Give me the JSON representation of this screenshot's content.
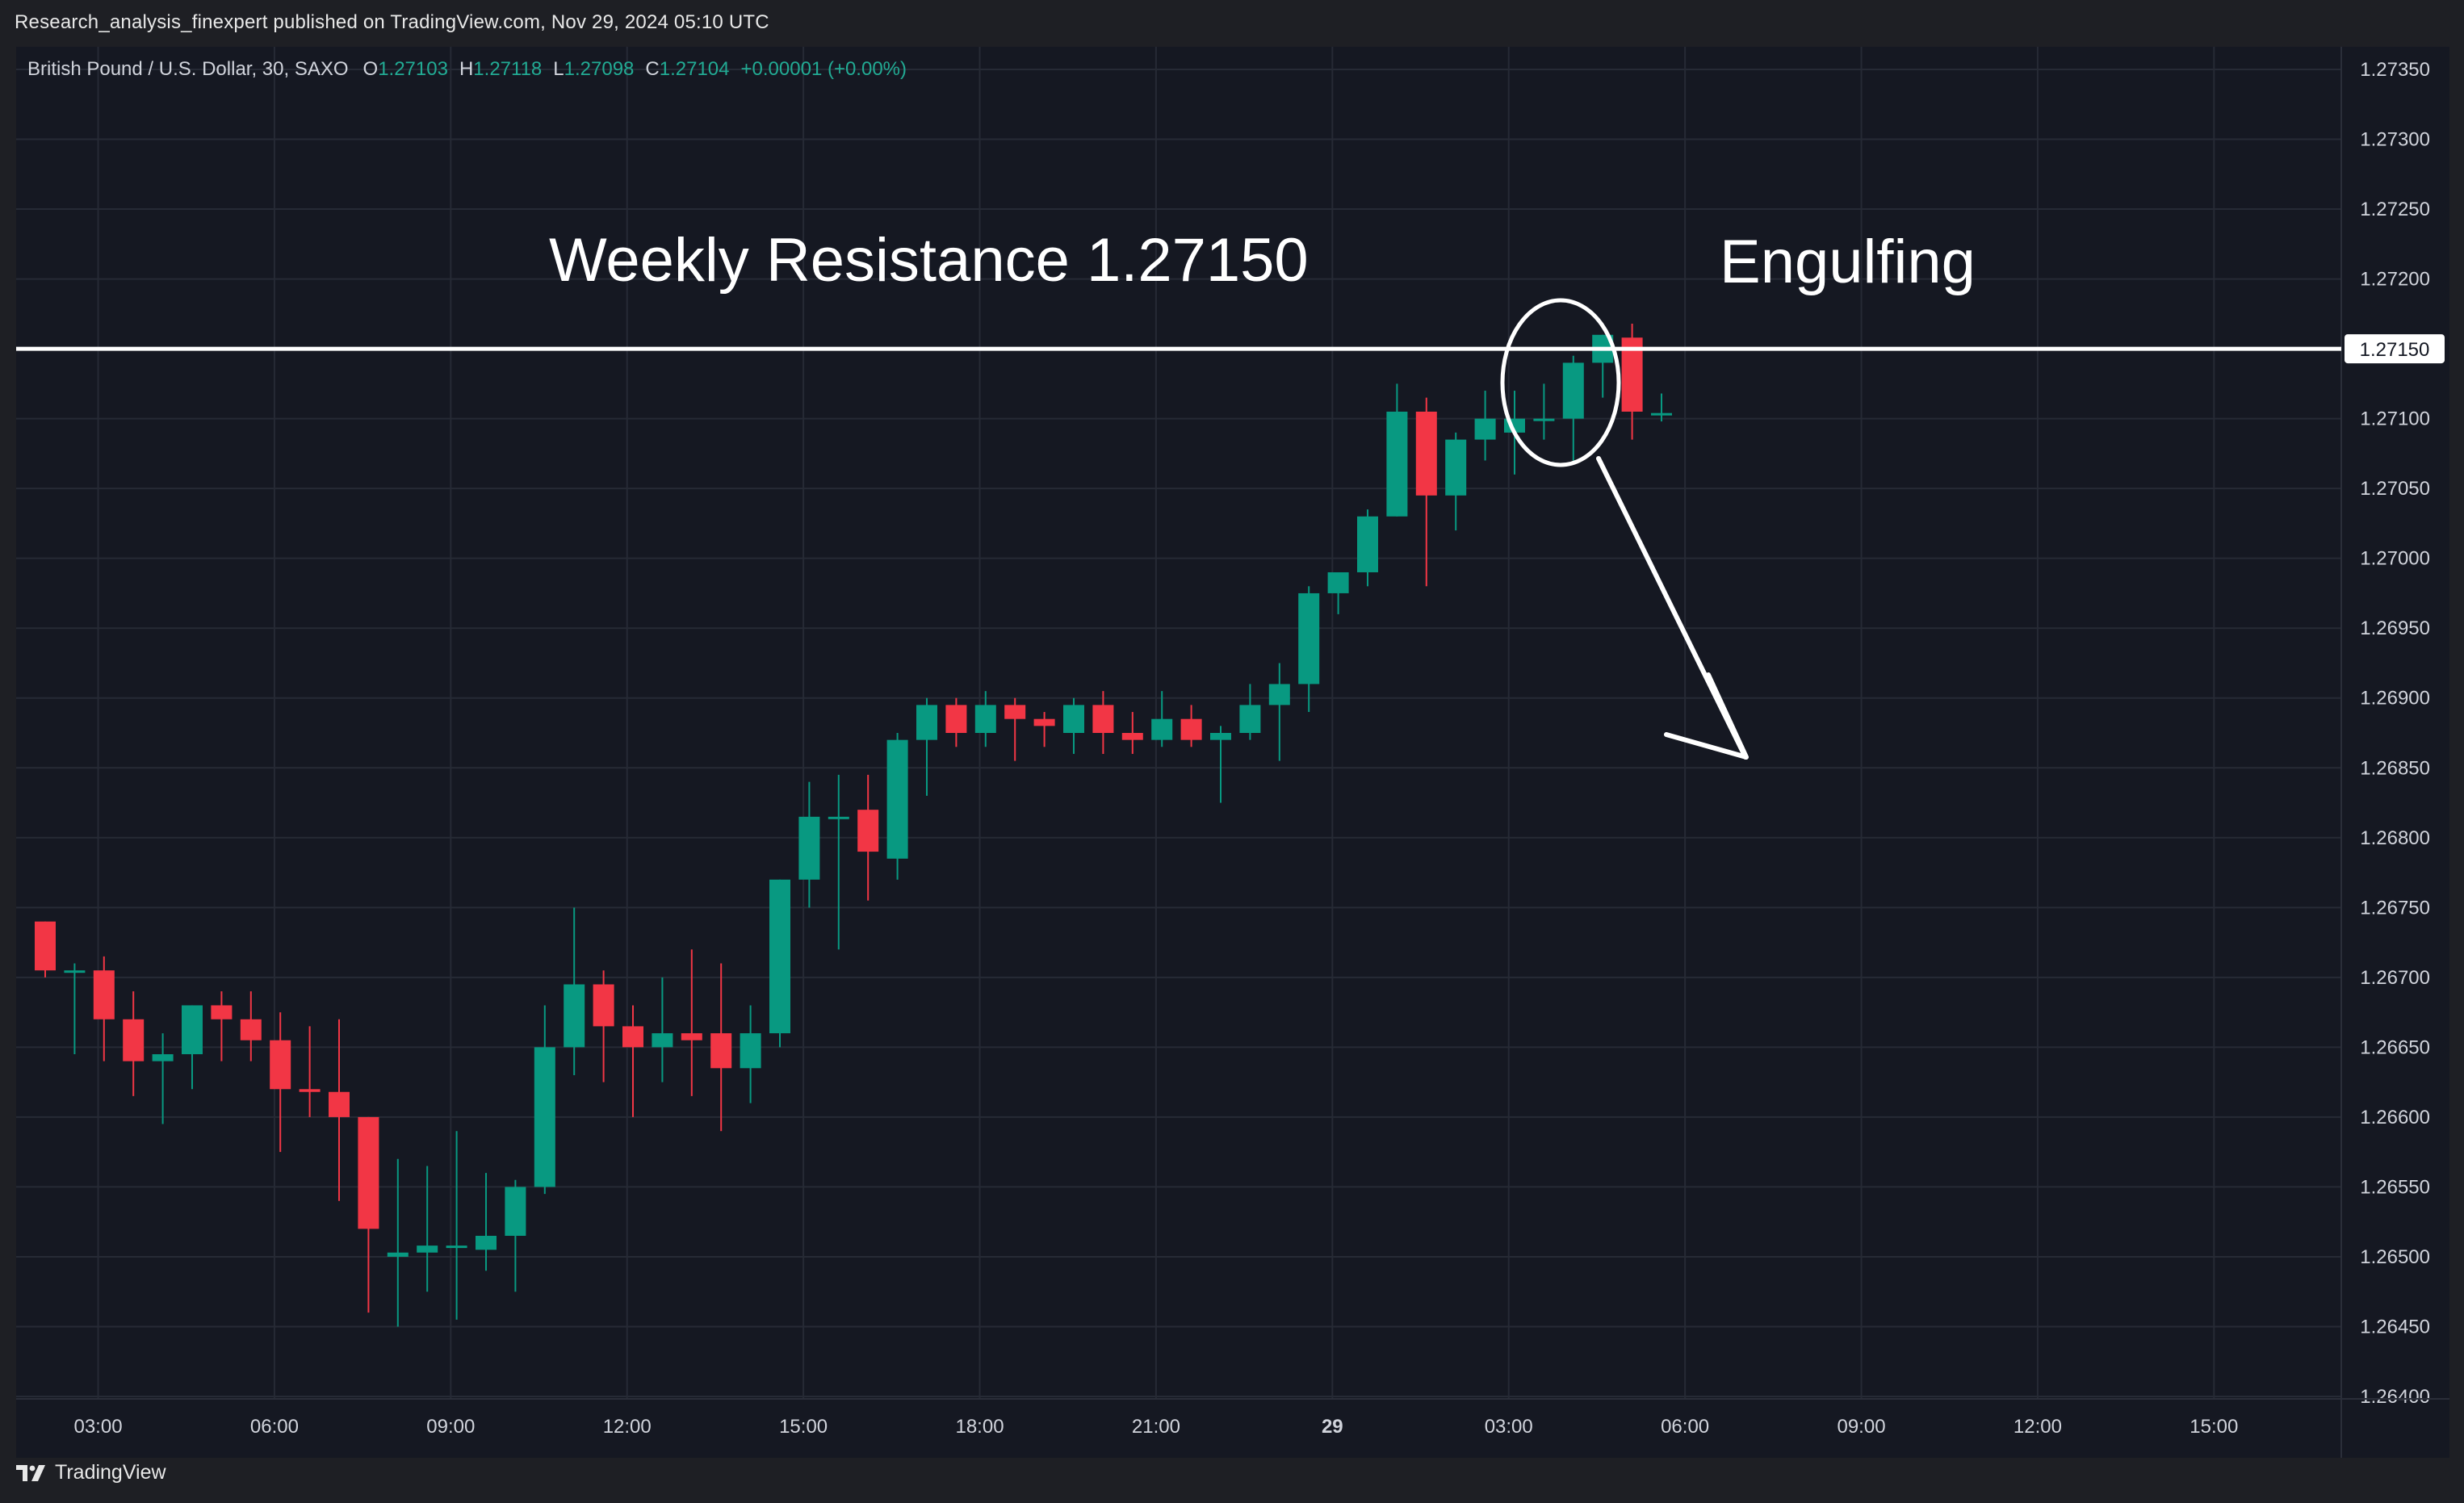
{
  "publisher_line": "Research_analysis_finexpert published on TradingView.com, Nov 29, 2024 05:10 UTC",
  "legend": {
    "symbol": "British Pound / U.S. Dollar, 30, SAXO",
    "open_label": "O",
    "open": "1.27103",
    "high_label": "H",
    "high": "1.27118",
    "low_label": "L",
    "low": "1.27098",
    "close_label": "C",
    "close": "1.27104",
    "change": "+0.00001 (+0.00%)"
  },
  "footer": {
    "brand": "TradingView",
    "logo_icon": "tradingview-logo-icon"
  },
  "colors": {
    "up": "#089981",
    "down": "#f23645",
    "background": "#151822",
    "grid": "#262a35",
    "text": "#d1d4dc",
    "annotation": "#ffffff"
  },
  "chart_data": {
    "type": "candlestick",
    "interval": "30",
    "ylim": [
      1.264,
      1.2735
    ],
    "y_ticks": [
      "1.27350",
      "1.27300",
      "1.27250",
      "1.27200",
      "1.27150",
      "1.27100",
      "1.27050",
      "1.27000",
      "1.26950",
      "1.26900",
      "1.26850",
      "1.26800",
      "1.26750",
      "1.26700",
      "1.26650",
      "1.26600",
      "1.26550",
      "1.26500",
      "1.26450",
      "1.26400"
    ],
    "x_ticks": [
      {
        "label": "03:00",
        "bar": 1.8,
        "bold": false
      },
      {
        "label": "06:00",
        "bar": 7.8,
        "bold": false
      },
      {
        "label": "09:00",
        "bar": 13.8,
        "bold": false
      },
      {
        "label": "12:00",
        "bar": 19.8,
        "bold": false
      },
      {
        "label": "15:00",
        "bar": 25.8,
        "bold": false
      },
      {
        "label": "18:00",
        "bar": 31.8,
        "bold": false
      },
      {
        "label": "21:00",
        "bar": 37.8,
        "bold": false
      },
      {
        "label": "29",
        "bar": 43.8,
        "bold": true
      },
      {
        "label": "03:00",
        "bar": 49.8,
        "bold": false
      },
      {
        "label": "06:00",
        "bar": 55.8,
        "bold": false
      },
      {
        "label": "09:00",
        "bar": 61.8,
        "bold": false
      },
      {
        "label": "12:00",
        "bar": 67.8,
        "bold": false
      },
      {
        "label": "15:00",
        "bar": 73.8,
        "bold": false
      }
    ],
    "candles": [
      [
        1.2674,
        1.2674,
        1.267,
        1.26705
      ],
      [
        1.26705,
        1.2671,
        1.26645,
        1.26705
      ],
      [
        1.26705,
        1.26715,
        1.2664,
        1.2667
      ],
      [
        1.2667,
        1.2669,
        1.26615,
        1.2664
      ],
      [
        1.2664,
        1.2666,
        1.26595,
        1.26645
      ],
      [
        1.26645,
        1.2668,
        1.2662,
        1.2668
      ],
      [
        1.2668,
        1.2669,
        1.2664,
        1.2667
      ],
      [
        1.2667,
        1.2669,
        1.2664,
        1.26655
      ],
      [
        1.26655,
        1.26675,
        1.26575,
        1.2662
      ],
      [
        1.2662,
        1.26665,
        1.266,
        1.26618
      ],
      [
        1.26618,
        1.2667,
        1.2654,
        1.266
      ],
      [
        1.266,
        1.266,
        1.2646,
        1.2652
      ],
      [
        1.265,
        1.2657,
        1.2645,
        1.26503
      ],
      [
        1.26503,
        1.26565,
        1.26475,
        1.26508
      ],
      [
        1.26508,
        1.2659,
        1.26455,
        1.26508
      ],
      [
        1.26505,
        1.2656,
        1.2649,
        1.26515
      ],
      [
        1.26515,
        1.26555,
        1.26475,
        1.2655
      ],
      [
        1.2655,
        1.2668,
        1.26545,
        1.2665
      ],
      [
        1.2665,
        1.2675,
        1.2663,
        1.26695
      ],
      [
        1.26695,
        1.26705,
        1.26625,
        1.26665
      ],
      [
        1.26665,
        1.2668,
        1.266,
        1.2665
      ],
      [
        1.2665,
        1.267,
        1.26625,
        1.2666
      ],
      [
        1.2666,
        1.2672,
        1.26615,
        1.26655
      ],
      [
        1.2666,
        1.2671,
        1.2659,
        1.26635
      ],
      [
        1.26635,
        1.2668,
        1.2661,
        1.2666
      ],
      [
        1.2666,
        1.2677,
        1.2665,
        1.2677
      ],
      [
        1.2677,
        1.2684,
        1.2675,
        1.26815
      ],
      [
        1.26815,
        1.26845,
        1.2672,
        1.26815
      ],
      [
        1.2682,
        1.26845,
        1.26755,
        1.2679
      ],
      [
        1.26785,
        1.26875,
        1.2677,
        1.2687
      ],
      [
        1.2687,
        1.269,
        1.2683,
        1.26895
      ],
      [
        1.26895,
        1.269,
        1.26865,
        1.26875
      ],
      [
        1.26875,
        1.26905,
        1.26865,
        1.26895
      ],
      [
        1.26895,
        1.269,
        1.26855,
        1.26885
      ],
      [
        1.26885,
        1.2689,
        1.26865,
        1.2688
      ],
      [
        1.26875,
        1.269,
        1.2686,
        1.26895
      ],
      [
        1.26895,
        1.26905,
        1.2686,
        1.26875
      ],
      [
        1.26875,
        1.2689,
        1.2686,
        1.2687
      ],
      [
        1.2687,
        1.26905,
        1.26865,
        1.26885
      ],
      [
        1.26885,
        1.26895,
        1.26865,
        1.2687
      ],
      [
        1.2687,
        1.2688,
        1.26825,
        1.26875
      ],
      [
        1.26875,
        1.2691,
        1.2687,
        1.26895
      ],
      [
        1.26895,
        1.26925,
        1.26855,
        1.2691
      ],
      [
        1.2691,
        1.2698,
        1.2689,
        1.26975
      ],
      [
        1.26975,
        1.2699,
        1.2696,
        1.2699
      ],
      [
        1.2699,
        1.27035,
        1.2698,
        1.2703
      ],
      [
        1.2703,
        1.27125,
        1.2703,
        1.27105
      ],
      [
        1.27105,
        1.27115,
        1.2698,
        1.27045
      ],
      [
        1.27045,
        1.2709,
        1.2702,
        1.27085
      ],
      [
        1.27085,
        1.2712,
        1.2707,
        1.271
      ],
      [
        1.2709,
        1.2712,
        1.2706,
        1.271
      ],
      [
        1.271,
        1.27125,
        1.27085,
        1.271
      ],
      [
        1.271,
        1.27145,
        1.2707,
        1.2714
      ],
      [
        1.2714,
        1.2716,
        1.27115,
        1.2716
      ],
      [
        1.27158,
        1.27168,
        1.27085,
        1.27105
      ],
      [
        1.27103,
        1.27118,
        1.27098,
        1.27104
      ]
    ],
    "horizontal_line": {
      "value": 1.2715,
      "label": "1.27150"
    },
    "annotations": [
      {
        "text": "Weekly Resistance 1.27150"
      },
      {
        "text": "Engulfing"
      }
    ]
  }
}
